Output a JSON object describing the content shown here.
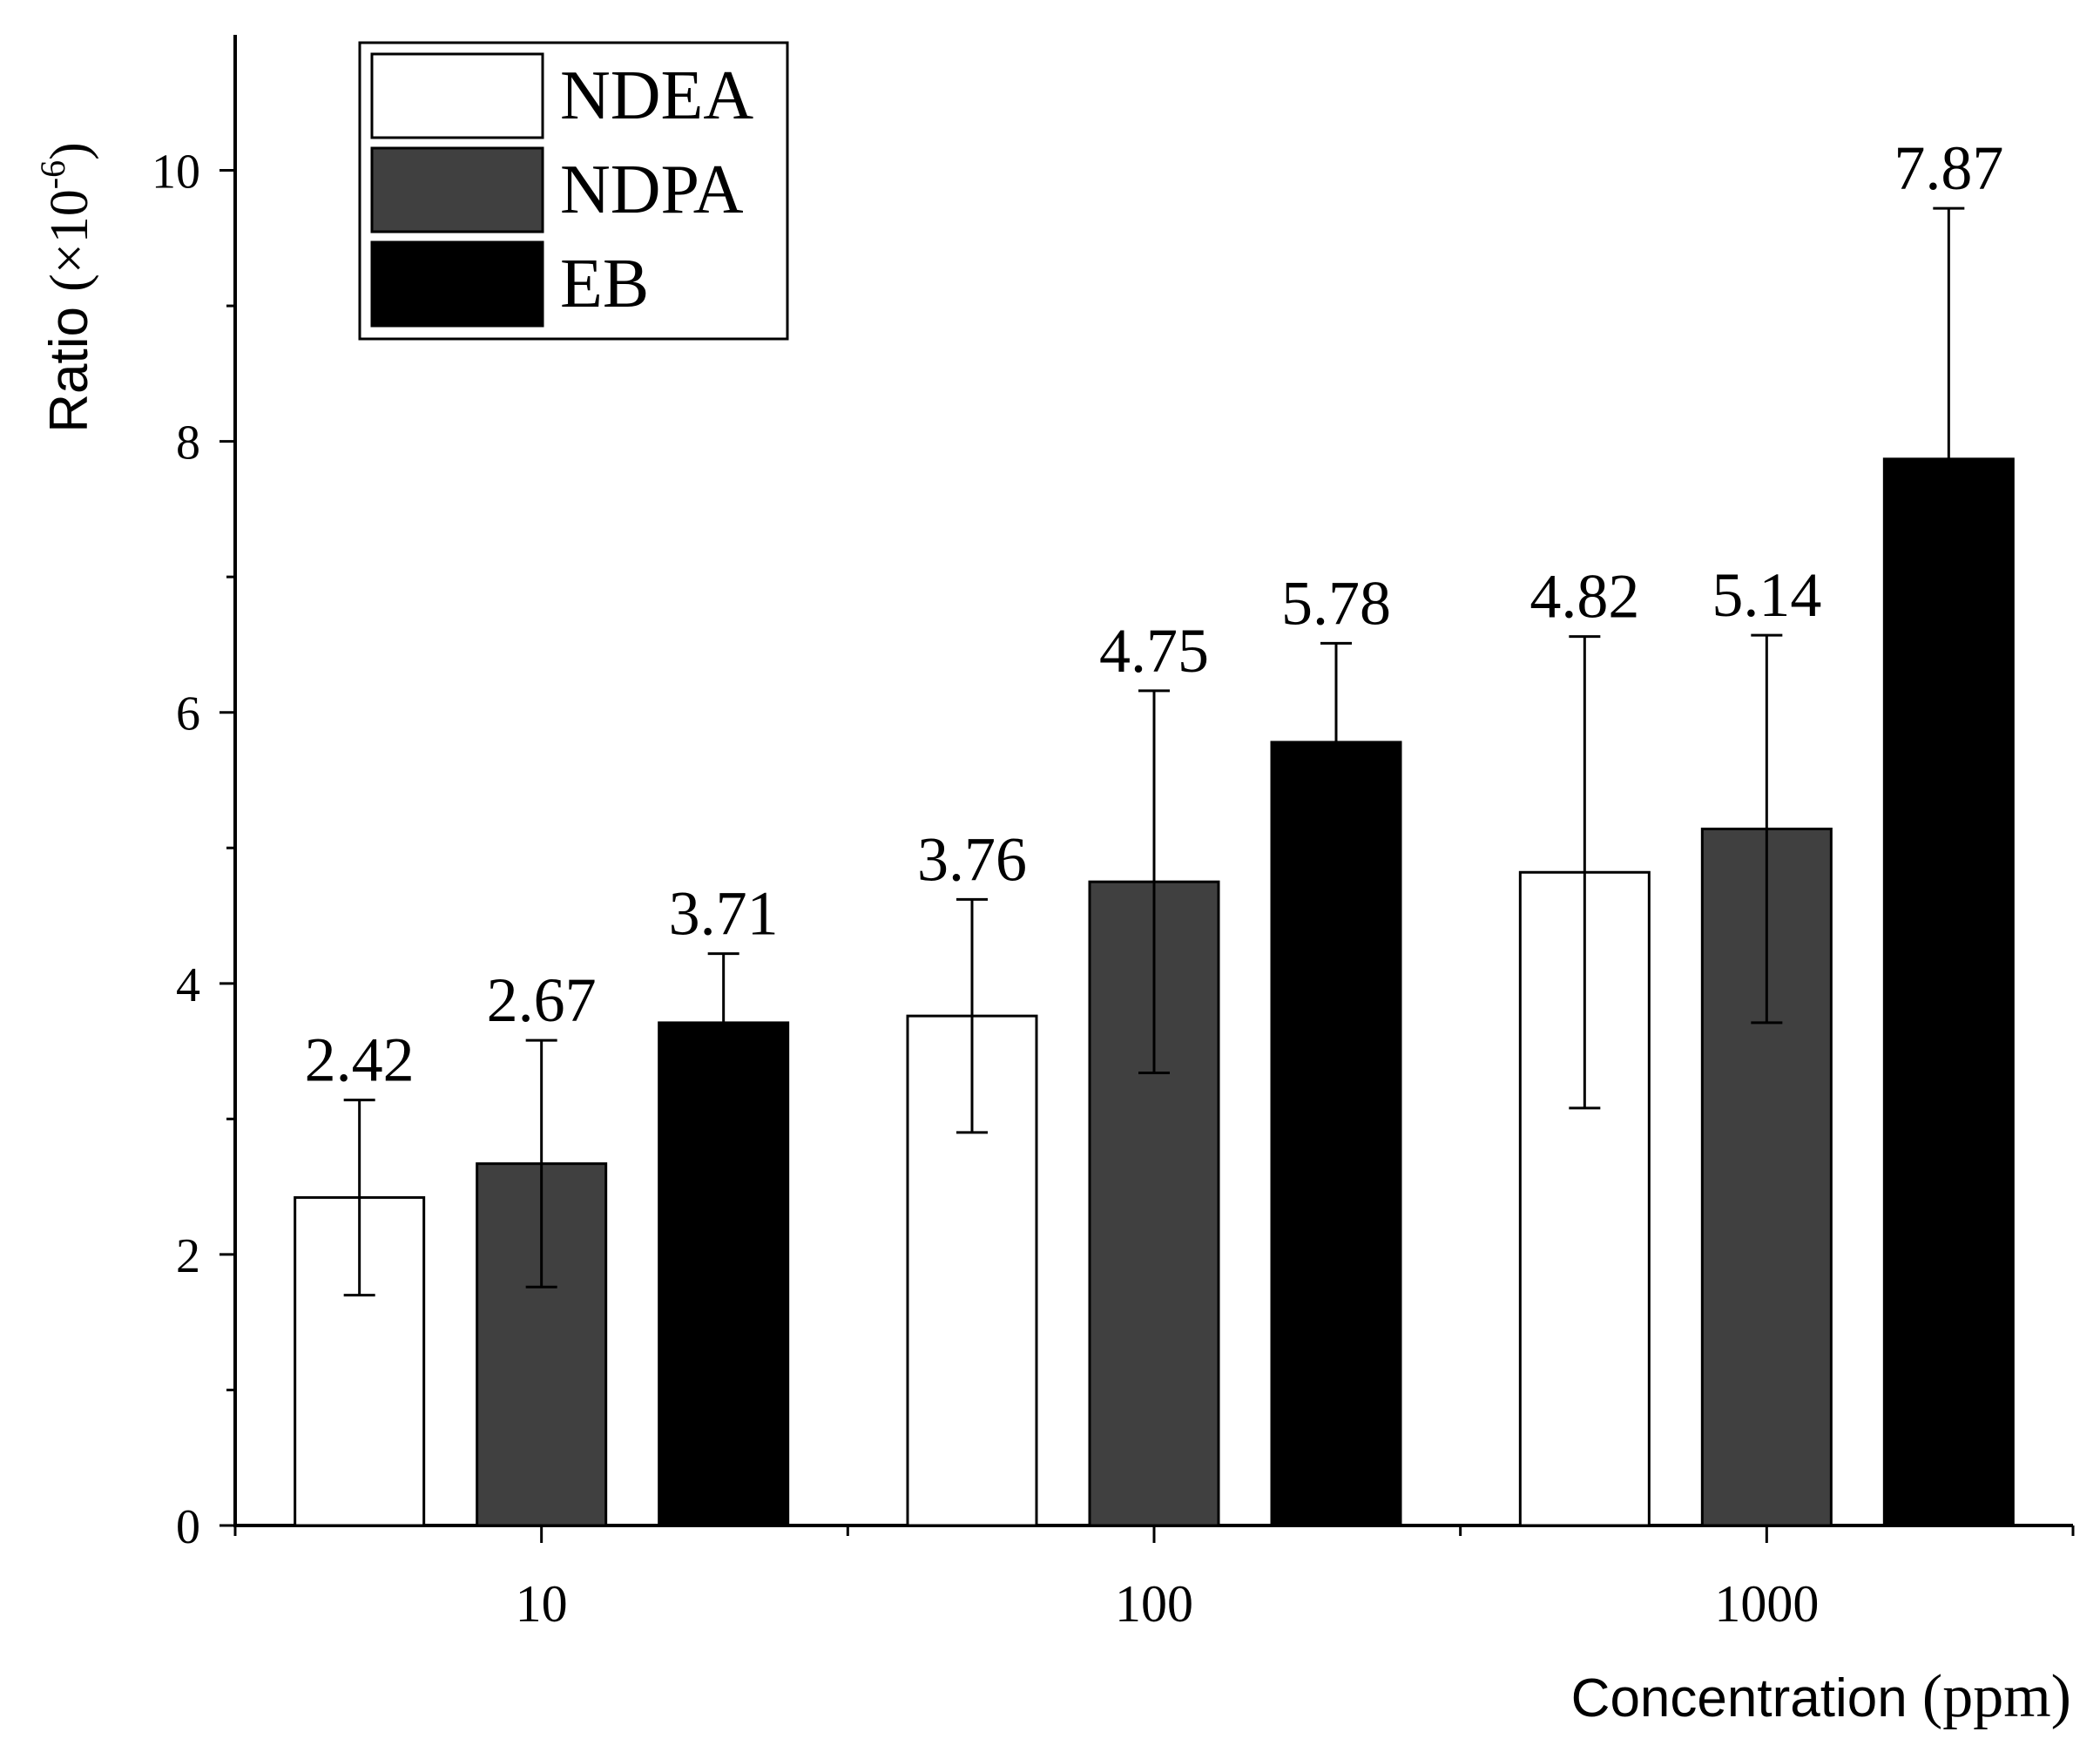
{
  "chart_data": {
    "type": "bar",
    "categories": [
      "10",
      "100",
      "1000"
    ],
    "series": [
      {
        "name": "NDEA",
        "color": "#ffffff",
        "values": [
          2.42,
          3.76,
          4.82
        ],
        "errors": [
          0.72,
          0.86,
          1.74
        ]
      },
      {
        "name": "NDPA",
        "color": "#404040",
        "values": [
          2.67,
          4.75,
          5.14
        ],
        "errors": [
          0.91,
          1.41,
          1.43
        ]
      },
      {
        "name": "EB",
        "color": "#000000",
        "values": [
          3.71,
          5.78,
          7.87
        ],
        "errors": [
          0.51,
          0.73,
          1.85
        ]
      }
    ],
    "data_labels": [
      [
        "2.42",
        "3.76",
        "4.82"
      ],
      [
        "2.67",
        "4.75",
        "5.14"
      ],
      [
        "3.71",
        "5.78",
        "7.87"
      ]
    ],
    "ylabel_main": "Ratio ",
    "ylabel_paren_open": "(×10",
    "ylabel_exponent": "-6",
    "ylabel_paren_close": ")",
    "xlabel_main": "Concentration ",
    "xlabel_unit": "(ppm)",
    "ylim": [
      0,
      11
    ],
    "yticks": [
      0,
      2,
      4,
      6,
      8,
      10
    ],
    "ytick_labels": [
      "0",
      "2",
      "4",
      "6",
      "8",
      "10"
    ],
    "legend_position": "top-left",
    "grid": false
  }
}
